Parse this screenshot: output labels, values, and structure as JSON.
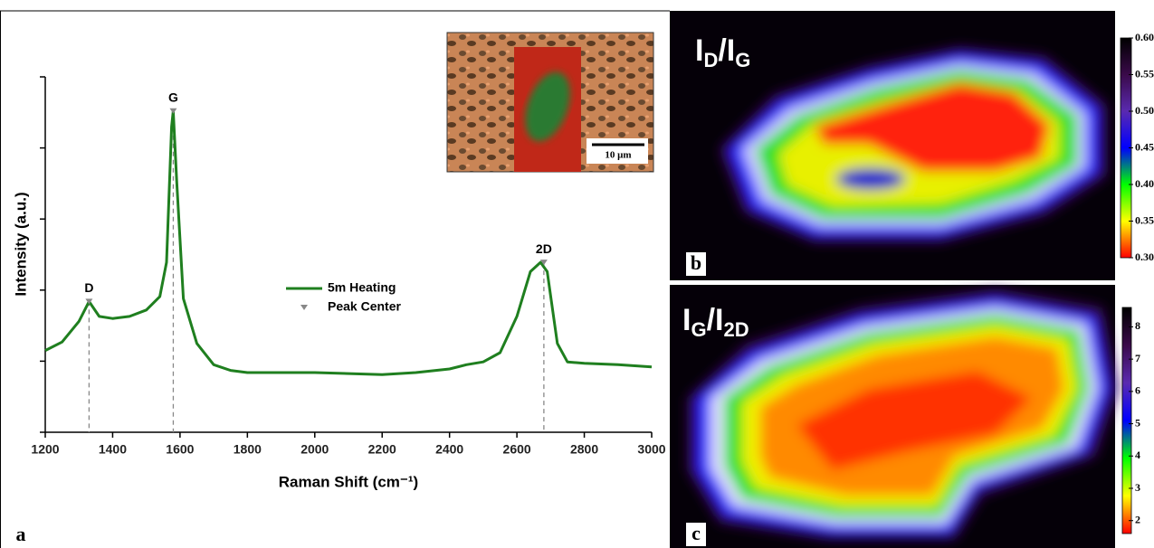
{
  "chart_data": [
    {
      "type": "line",
      "panel_label": "a",
      "xlabel": "Raman Shift (cm⁻¹)",
      "ylabel": "Intensity (a.u.)",
      "xlim": [
        1200,
        3000
      ],
      "xticks": [
        1200,
        1400,
        1600,
        1800,
        2000,
        2200,
        2400,
        2600,
        2800,
        3000
      ],
      "ylim": [
        0,
        5
      ],
      "yticks": [
        0,
        1,
        2,
        3,
        4,
        5
      ],
      "inset_scale_bar": "10 μm",
      "series": [
        {
          "name": "5m Heating",
          "color": "#1f7f1f",
          "x": [
            1200,
            1250,
            1300,
            1330,
            1360,
            1400,
            1450,
            1500,
            1540,
            1560,
            1575,
            1580,
            1590,
            1610,
            1650,
            1700,
            1750,
            1800,
            2000,
            2200,
            2300,
            2400,
            2450,
            2500,
            2550,
            2600,
            2640,
            2670,
            2690,
            2720,
            2750,
            2800,
            2900,
            3000
          ],
          "values": [
            1.15,
            1.27,
            1.56,
            1.84,
            1.63,
            1.6,
            1.63,
            1.72,
            1.91,
            2.39,
            4.3,
            4.52,
            3.54,
            1.88,
            1.25,
            0.95,
            0.87,
            0.84,
            0.84,
            0.81,
            0.84,
            0.89,
            0.95,
            0.99,
            1.12,
            1.63,
            2.26,
            2.39,
            2.26,
            1.25,
            0.99,
            0.97,
            0.95,
            0.92
          ]
        },
        {
          "name": "Peak Center",
          "color": "#888888",
          "marker": "triangle",
          "x": [
            1330,
            1580,
            2680
          ],
          "values": [
            1.84,
            4.52,
            2.39
          ],
          "point_labels": [
            "D",
            "G",
            "2D"
          ]
        }
      ]
    },
    {
      "type": "heatmap",
      "panel_label": "b",
      "title": [
        {
          "text": "I"
        },
        {
          "text": "D",
          "sub": true
        },
        {
          "text": "/I"
        },
        {
          "text": "G",
          "sub": true
        }
      ],
      "zlim": [
        0.3,
        0.6
      ],
      "zticks": [
        {
          "value": 0.3,
          "label": "0.30"
        },
        {
          "value": 0.35,
          "label": "0.35"
        },
        {
          "value": 0.4,
          "label": "0.40"
        },
        {
          "value": 0.45,
          "label": "0.45"
        },
        {
          "value": 0.5,
          "label": "0.50"
        },
        {
          "value": 0.55,
          "label": "0.55"
        },
        {
          "value": 0.6,
          "label": "0.60"
        }
      ],
      "colormap": [
        "#ff0000",
        "#ffff00",
        "#00ff00",
        "#0000ff",
        "#5a2ab0",
        "#3a0a4a",
        "#000000"
      ]
    },
    {
      "type": "heatmap",
      "panel_label": "c",
      "title": [
        {
          "text": "I"
        },
        {
          "text": "G",
          "sub": true
        },
        {
          "text": "/I"
        },
        {
          "text": "2D",
          "sub": true
        }
      ],
      "zlim": [
        1.6,
        8.6
      ],
      "zticks": [
        2,
        3,
        4,
        5,
        6,
        7,
        8
      ],
      "colormap": [
        "#ff0000",
        "#ffff00",
        "#00ff00",
        "#0000ff",
        "#5a2ab0",
        "#3a0a4a",
        "#000000"
      ]
    }
  ]
}
